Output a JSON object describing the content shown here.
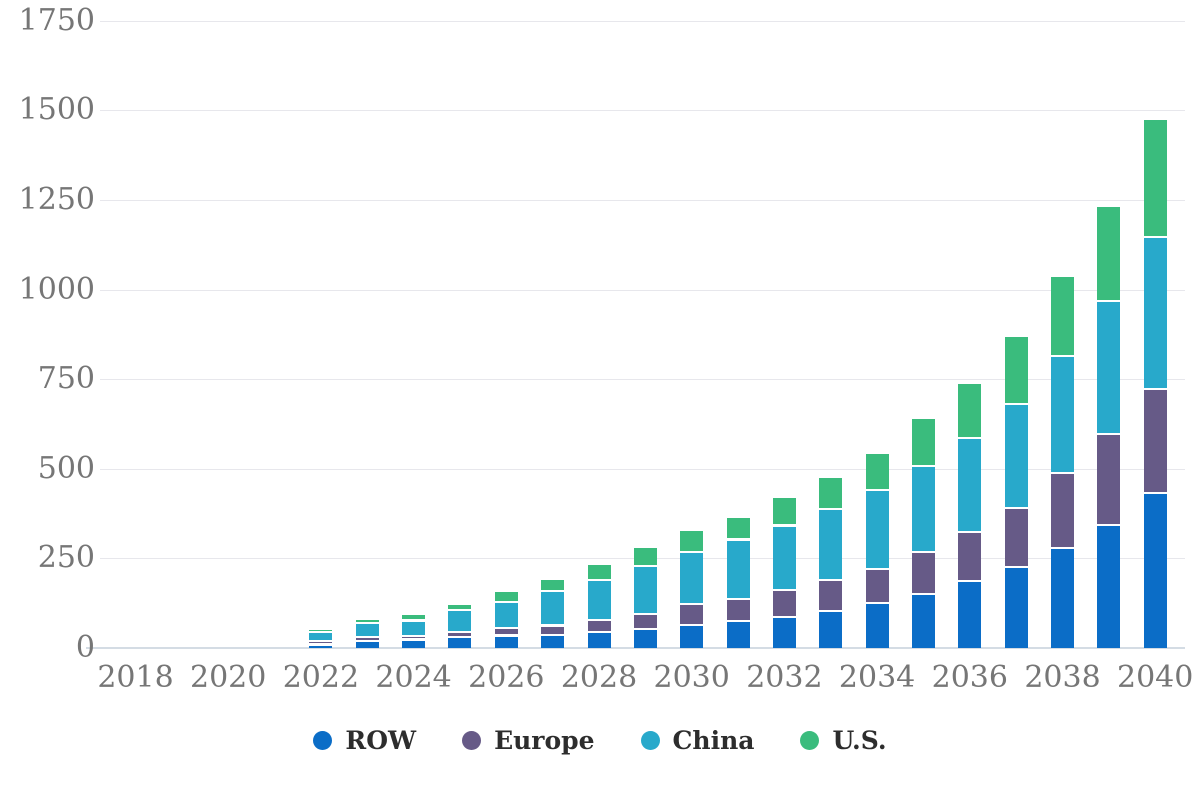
{
  "chart_data": {
    "type": "bar",
    "stacked": true,
    "title": "",
    "xlabel": "",
    "ylabel": "",
    "x": [
      2018,
      2019,
      2020,
      2021,
      2022,
      2023,
      2024,
      2025,
      2026,
      2027,
      2028,
      2029,
      2030,
      2031,
      2032,
      2033,
      2034,
      2035,
      2036,
      2037,
      2038,
      2039,
      2040
    ],
    "x_tick_years": [
      2018,
      2020,
      2022,
      2024,
      2026,
      2028,
      2030,
      2032,
      2034,
      2036,
      2038,
      2040
    ],
    "y_ticks": [
      0,
      250,
      500,
      750,
      1000,
      1250,
      1500,
      1750
    ],
    "ylim": [
      0,
      1750
    ],
    "grid": true,
    "legend_position": "bottom",
    "series": [
      {
        "name": "ROW",
        "color": "#0b6dc7",
        "values": [
          0,
          0,
          0,
          0,
          7,
          17,
          21,
          28,
          32,
          33,
          41,
          49,
          61,
          72,
          83,
          100,
          123,
          148,
          184,
          224,
          277,
          340,
          429
        ]
      },
      {
        "name": "Europe",
        "color": "#665a87",
        "values": [
          0,
          0,
          0,
          0,
          10,
          11,
          11,
          14,
          22,
          27,
          35,
          44,
          58,
          62,
          77,
          86,
          95,
          116,
          136,
          164,
          209,
          255,
          291
        ]
      },
      {
        "name": "China",
        "color": "#28a9cb",
        "values": [
          0,
          0,
          0,
          0,
          24,
          40,
          42,
          61,
          71,
          96,
          110,
          134,
          146,
          166,
          179,
          200,
          219,
          242,
          263,
          291,
          327,
          370,
          425
        ]
      },
      {
        "name": "U.S.",
        "color": "#3abc7d",
        "values": [
          0,
          0,
          0,
          0,
          9,
          9,
          19,
          18,
          31,
          34,
          47,
          51,
          61,
          62,
          80,
          88,
          104,
          133,
          155,
          190,
          223,
          266,
          329
        ]
      }
    ]
  },
  "colors": {
    "grid": "#e7e7ec",
    "axis_line": "#d4dce4",
    "axis_text": "#767676",
    "legend_text": "#2d2d2d",
    "background": "#ffffff"
  }
}
